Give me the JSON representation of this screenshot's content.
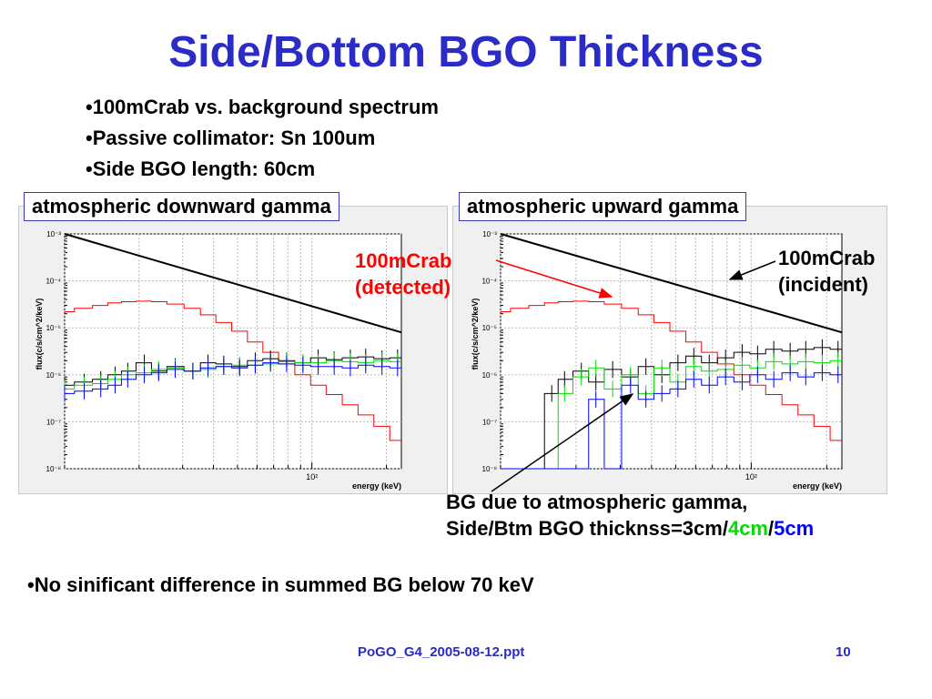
{
  "title": "Side/Bottom BGO Thickness",
  "bullets": [
    "•100mCrab vs. background spectrum",
    "•Passive collimator: Sn 100um",
    "•Side BGO length: 60cm"
  ],
  "plot_labels": {
    "left": "atmospheric downward gamma",
    "right": "atmospheric upward gamma"
  },
  "annotations": {
    "detected_line1": "100mCrab",
    "detected_line2": "(detected)",
    "incident_line1": "100mCrab",
    "incident_line2": "(incident)",
    "bg_line1": "BG due to atmospheric gamma,",
    "bg_line2_prefix": "Side/Btm BGO thicknss=3cm/",
    "bg_line2_4cm": "4cm",
    "bg_line2_slash": "/",
    "bg_line2_5cm": "5cm"
  },
  "bottom_bullet": "•No sinificant difference in summed BG below 70 keV",
  "footer": {
    "filename": "PoGO_G4_2005-08-12.ppt",
    "page_number": "10"
  },
  "colors": {
    "title_blue": "#2b2bc8",
    "crab_detected": "#ff0000",
    "crab_incident": "#000000",
    "bg_3cm": "#000000",
    "bg_4cm": "#00dd00",
    "bg_5cm": "#0000ff"
  },
  "chart_data": [
    {
      "type": "line",
      "title": "",
      "xlabel": "energy (keV)",
      "ylabel": "flux(c/s/cm^2/keV)",
      "xscale": "log",
      "yscale": "log",
      "xlim": [
        10,
        230
      ],
      "ylim": [
        1e-08,
        0.001
      ],
      "xtick_labels": [
        "10²"
      ],
      "ytick_labels": [
        "10⁻³",
        "10⁻⁴",
        "10⁻⁵",
        "10⁻⁶",
        "10⁻⁷",
        "10⁻⁸"
      ],
      "grid": true,
      "x": [
        10,
        12,
        14,
        16,
        18,
        21,
        24,
        28,
        33,
        38,
        44,
        51,
        59,
        68,
        79,
        92,
        106,
        123,
        143,
        165,
        192,
        222
      ],
      "series": [
        {
          "name": "100mCrab (incident)",
          "color": "#000000",
          "values": [
            0.0011,
            0.00085,
            0.00066,
            0.00053,
            0.00043,
            0.00034,
            0.00027,
            0.00021,
            0.000165,
            0.00013,
            0.0001,
            8e-05,
            6.3e-05,
            5e-05,
            3.9e-05,
            3.1e-05,
            2.5e-05,
            2e-05,
            1.6e-05,
            1.3e-05,
            1e-05,
            8e-06
          ]
        },
        {
          "name": "100mCrab (detected)",
          "color": "#ff0000",
          "values": [
            2.2e-05,
            2.6e-05,
            3e-05,
            3.4e-05,
            3.6e-05,
            3.7e-05,
            3.6e-05,
            3.2e-05,
            2.6e-05,
            1.9e-05,
            1.3e-05,
            8.5e-06,
            5e-06,
            3e-06,
            1.7e-06,
            1e-06,
            6e-07,
            3.8e-07,
            2.3e-07,
            1.4e-07,
            8e-08,
            4e-08
          ]
        },
        {
          "name": "3cm",
          "color": "#000000",
          "values": [
            6e-07,
            7e-07,
            8e-07,
            1e-06,
            1.2e-06,
            1.8e-06,
            1.2e-06,
            1.5e-06,
            1.2e-06,
            1.8e-06,
            1.7e-06,
            1.5e-06,
            2e-06,
            2.2e-06,
            2e-06,
            1.8e-06,
            2.3e-06,
            2.1e-06,
            2.3e-06,
            2.4e-06,
            2.2e-06,
            2.3e-06
          ]
        },
        {
          "name": "4cm",
          "color": "#00dd00",
          "values": [
            5e-07,
            6e-07,
            6.5e-07,
            8e-07,
            1e-06,
            1.1e-06,
            1.3e-06,
            1.4e-06,
            1.2e-06,
            1.3e-06,
            1.5e-06,
            1.6e-06,
            1.6e-06,
            1.7e-06,
            1.9e-06,
            1.8e-06,
            1.8e-06,
            2e-06,
            1.9e-06,
            1.8e-06,
            2e-06,
            1.9e-06
          ]
        },
        {
          "name": "5cm",
          "color": "#0000ff",
          "values": [
            4e-07,
            4.5e-07,
            5e-07,
            6e-07,
            8e-07,
            1e-06,
            1.1e-06,
            1.3e-06,
            1.2e-06,
            1.4e-06,
            1.5e-06,
            1.4e-06,
            1.6e-06,
            1.8e-06,
            1.7e-06,
            1.6e-06,
            1.5e-06,
            1.5e-06,
            1.4e-06,
            1.6e-06,
            1.5e-06,
            1.4e-06
          ]
        }
      ]
    },
    {
      "type": "line",
      "title": "",
      "xlabel": "energy (keV)",
      "ylabel": "flux(c/s/cm^2/keV)",
      "xscale": "log",
      "yscale": "log",
      "xlim": [
        10,
        230
      ],
      "ylim": [
        1e-08,
        0.001
      ],
      "xtick_labels": [
        "10²"
      ],
      "ytick_labels": [
        "10⁻³",
        "10⁻⁴",
        "10⁻⁵",
        "10⁻⁶",
        "10⁻⁷",
        "10⁻⁸"
      ],
      "grid": true,
      "x": [
        10,
        12,
        14,
        16,
        18,
        21,
        24,
        28,
        33,
        38,
        44,
        51,
        59,
        68,
        79,
        92,
        106,
        123,
        143,
        165,
        192,
        222
      ],
      "series": [
        {
          "name": "100mCrab (incident)",
          "color": "#000000",
          "values": [
            0.0011,
            0.00085,
            0.00066,
            0.00053,
            0.00043,
            0.00034,
            0.00027,
            0.00021,
            0.000165,
            0.00013,
            0.0001,
            8e-05,
            6.3e-05,
            5e-05,
            3.9e-05,
            3.1e-05,
            2.5e-05,
            2e-05,
            1.6e-05,
            1.3e-05,
            1e-05,
            8e-06
          ]
        },
        {
          "name": "100mCrab (detected)",
          "color": "#ff0000",
          "values": [
            2.2e-05,
            2.6e-05,
            3e-05,
            3.4e-05,
            3.6e-05,
            3.7e-05,
            3.6e-05,
            3.2e-05,
            2.6e-05,
            1.9e-05,
            1.3e-05,
            8.5e-06,
            5e-06,
            3e-06,
            1.7e-06,
            1e-06,
            6e-07,
            3.8e-07,
            2.3e-07,
            1.4e-07,
            8e-08,
            4e-08
          ]
        },
        {
          "name": "3cm",
          "color": "#000000",
          "values": [
            1e-08,
            1e-08,
            1e-08,
            4e-07,
            8e-07,
            1.2e-06,
            7e-07,
            1.3e-06,
            9e-07,
            1.5e-06,
            1e-06,
            1.8e-06,
            2.5e-06,
            1.8e-06,
            2.3e-06,
            3e-06,
            2.8e-06,
            3.5e-06,
            3.2e-06,
            3.5e-06,
            3.8e-06,
            3.5e-06
          ]
        },
        {
          "name": "4cm",
          "color": "#00dd00",
          "values": [
            1e-08,
            1e-08,
            1e-08,
            1e-08,
            4e-07,
            9e-07,
            1.4e-06,
            5e-07,
            1e-06,
            4e-07,
            1.4e-06,
            7e-07,
            1.5e-06,
            1.2e-06,
            1.3e-06,
            1.6e-06,
            1.4e-06,
            1.9e-06,
            1.7e-06,
            1.9e-06,
            1.8e-06,
            2e-06
          ]
        },
        {
          "name": "5cm",
          "color": "#0000ff",
          "values": [
            1e-08,
            1e-08,
            1e-08,
            1e-08,
            1e-08,
            1e-08,
            3e-07,
            1e-08,
            6e-07,
            3e-07,
            4e-07,
            5e-07,
            8e-07,
            6e-07,
            9e-07,
            7e-07,
            1e-06,
            8e-07,
            1.1e-06,
            9e-07,
            1.1e-06,
            1e-06
          ]
        }
      ]
    }
  ]
}
